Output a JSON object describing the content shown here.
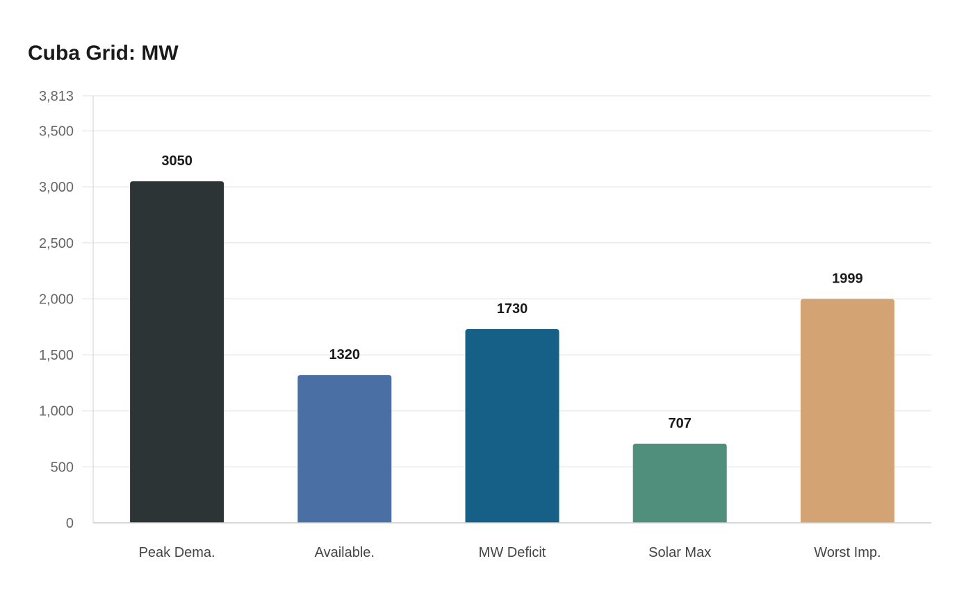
{
  "chart_data": {
    "type": "bar",
    "title": "Cuba Grid: MW",
    "categories": [
      "Peak Dema.",
      "Available.",
      "MW Deficit",
      "Solar Max",
      "Worst Imp."
    ],
    "values": [
      3050,
      1320,
      1730,
      707,
      1999
    ],
    "colors": [
      "#2d3436",
      "#4a6fa5",
      "#166088",
      "#4f8f7c",
      "#d4a373"
    ],
    "xlabel": "",
    "ylabel": "",
    "ylim": [
      0,
      3813
    ],
    "yticks": [
      0,
      500,
      1000,
      1500,
      2000,
      2500,
      3000,
      3500,
      3813
    ],
    "ytick_labels": [
      "0",
      "500",
      "1,000",
      "1,500",
      "2,000",
      "2,500",
      "3,000",
      "3,500",
      "3,813"
    ],
    "grid": true,
    "data_labels": true
  }
}
